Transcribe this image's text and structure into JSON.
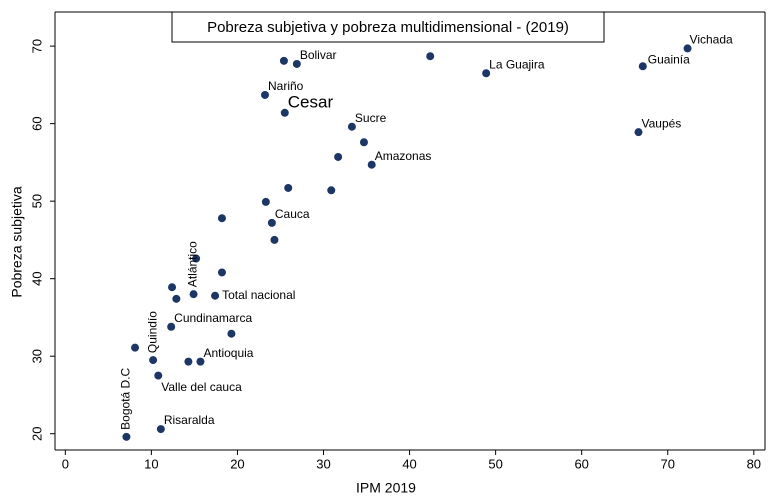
{
  "chart_data": {
    "type": "scatter",
    "title": "Pobreza subjetiva y pobreza multidimensional - (2019)",
    "x_label": "IPM 2019",
    "y_label": "Pobreza subjetiva",
    "xlim": [
      -1.2,
      81.3
    ],
    "ylim": [
      17.9,
      74.4
    ],
    "xticks": [
      0,
      10,
      20,
      30,
      40,
      50,
      60,
      70,
      80
    ],
    "yticks": [
      20,
      30,
      40,
      50,
      60,
      70
    ],
    "grid": false,
    "series": [
      {
        "name": null,
        "color": "#1c3766",
        "x": [
          72.3,
          67.1,
          66.6,
          48.9,
          42.4,
          26.9,
          25.4,
          23.2,
          25.5,
          33.3,
          34.7,
          31.7,
          35.6,
          25.9,
          30.9,
          23.3,
          18.2,
          24.0,
          24.3,
          15.2,
          18.2,
          12.4,
          17.4,
          14.9,
          12.9,
          12.3,
          19.3,
          8.1,
          10.2,
          14.3,
          15.7,
          10.8,
          11.1,
          7.1
        ],
        "values": [
          69.7,
          67.4,
          58.9,
          66.5,
          68.7,
          67.7,
          68.1,
          63.7,
          61.4,
          59.6,
          57.6,
          55.7,
          54.7,
          51.7,
          51.4,
          49.9,
          47.8,
          47.2,
          45.0,
          42.6,
          40.8,
          38.9,
          37.8,
          38.0,
          37.4,
          33.8,
          32.9,
          31.1,
          29.5,
          29.3,
          29.3,
          27.5,
          20.6,
          19.6
        ]
      }
    ],
    "labels": [
      "Vichada",
      "Guainía",
      "Vaupés",
      "La Guajira",
      null,
      "Bolivar",
      null,
      "Nariño",
      "Cesar",
      "Sucre",
      null,
      null,
      "Amazonas",
      null,
      null,
      null,
      null,
      "Cauca",
      null,
      null,
      null,
      null,
      "Total nacional",
      "Atlántico",
      null,
      "Cundinamarca",
      null,
      null,
      "Quindío",
      null,
      "Antioquia",
      "Valle del cauca",
      "Risaralda",
      "Bogotá D.C"
    ],
    "label_color": "#2b4a7e",
    "highlight_color": "#e0262b",
    "highlighted": [
      "Cesar",
      "Total nacional"
    ]
  }
}
